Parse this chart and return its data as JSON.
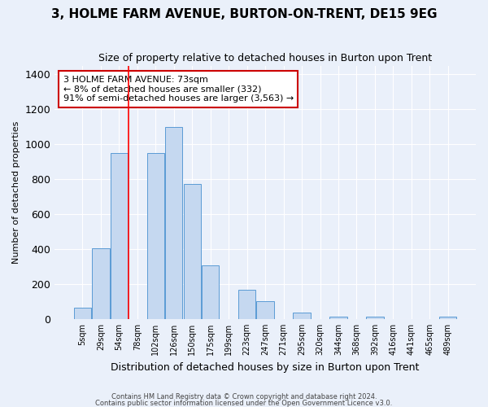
{
  "title": "3, HOLME FARM AVENUE, BURTON-ON-TRENT, DE15 9EG",
  "subtitle": "Size of property relative to detached houses in Burton upon Trent",
  "xlabel": "Distribution of detached houses by size in Burton upon Trent",
  "ylabel": "Number of detached properties",
  "footer1": "Contains HM Land Registry data © Crown copyright and database right 2024.",
  "footer2": "Contains public sector information licensed under the Open Government Licence v3.0.",
  "annotation_lines": [
    "3 HOLME FARM AVENUE: 73sqm",
    "← 8% of detached houses are smaller (332)",
    "91% of semi-detached houses are larger (3,563) →"
  ],
  "bar_labels": [
    "5sqm",
    "29sqm",
    "54sqm",
    "78sqm",
    "102sqm",
    "126sqm",
    "150sqm",
    "175sqm",
    "199sqm",
    "223sqm",
    "247sqm",
    "271sqm",
    "295sqm",
    "320sqm",
    "344sqm",
    "368sqm",
    "392sqm",
    "416sqm",
    "441sqm",
    "465sqm",
    "489sqm"
  ],
  "bar_values": [
    65,
    405,
    950,
    0,
    950,
    1100,
    775,
    305,
    0,
    165,
    100,
    0,
    35,
    0,
    15,
    0,
    15,
    0,
    0,
    0,
    15
  ],
  "bar_color": "#c5d8f0",
  "bar_edge_color": "#5b9bd5",
  "red_line_x": 3,
  "ylim": [
    0,
    1450
  ],
  "yticks": [
    0,
    200,
    400,
    600,
    800,
    1000,
    1200,
    1400
  ],
  "bg_color": "#eaf0fa",
  "grid_color": "#ffffff",
  "annotation_box_color": "#ffffff",
  "annotation_box_edge": "#cc0000",
  "title_fontsize": 11,
  "subtitle_fontsize": 9
}
